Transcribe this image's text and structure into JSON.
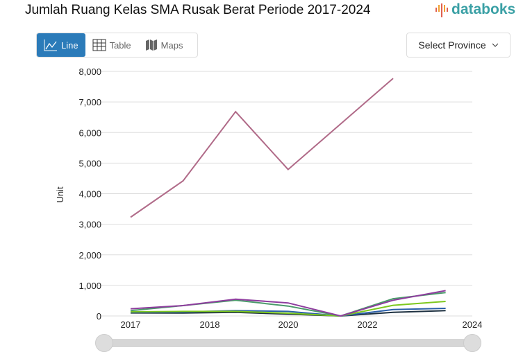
{
  "header": {
    "title": "Jumlah Ruang Kelas SMA Rusak Berat Periode 2017-2024",
    "logo": "databoks"
  },
  "tabs": [
    {
      "label": "Line",
      "icon": "line-chart-icon",
      "active": true
    },
    {
      "label": "Table",
      "icon": "table-icon"
    },
    {
      "label": "Maps",
      "icon": "map-icon"
    }
  ],
  "select": {
    "label": "Select Province",
    "icon": "chevron-down-icon"
  },
  "chart_data": {
    "type": "line",
    "ylabel": "Unit",
    "ylim": [
      0,
      8000
    ],
    "yticks": [
      "0",
      "1,000",
      "2,000",
      "3,000",
      "4,000",
      "5,000",
      "6,000",
      "7,000",
      "8,000"
    ],
    "xticks": [
      "2017",
      "2018",
      "2020",
      "2022",
      "2024"
    ],
    "grid": true,
    "x": [
      2017,
      2018,
      2019,
      2020,
      2021,
      2022,
      2023
    ],
    "series": [
      {
        "color": "#b06a88",
        "values": [
          3230,
          4420,
          6680,
          4790,
          6280,
          7770,
          null
        ]
      },
      {
        "color": "#8e3d9e",
        "values": [
          235,
          340,
          550,
          425,
          0,
          515,
          830
        ]
      },
      {
        "color": "#4a9a6a",
        "values": [
          175,
          340,
          515,
          325,
          0,
          565,
          765
        ]
      },
      {
        "color": "#7dc81e",
        "values": [
          135,
          150,
          150,
          90,
          0,
          350,
          475
        ]
      },
      {
        "color": "#2a5fa8",
        "values": [
          120,
          130,
          175,
          150,
          0,
          210,
          250
        ]
      },
      {
        "color": "#1d3040",
        "values": [
          100,
          95,
          120,
          60,
          0,
          120,
          175
        ]
      }
    ]
  }
}
